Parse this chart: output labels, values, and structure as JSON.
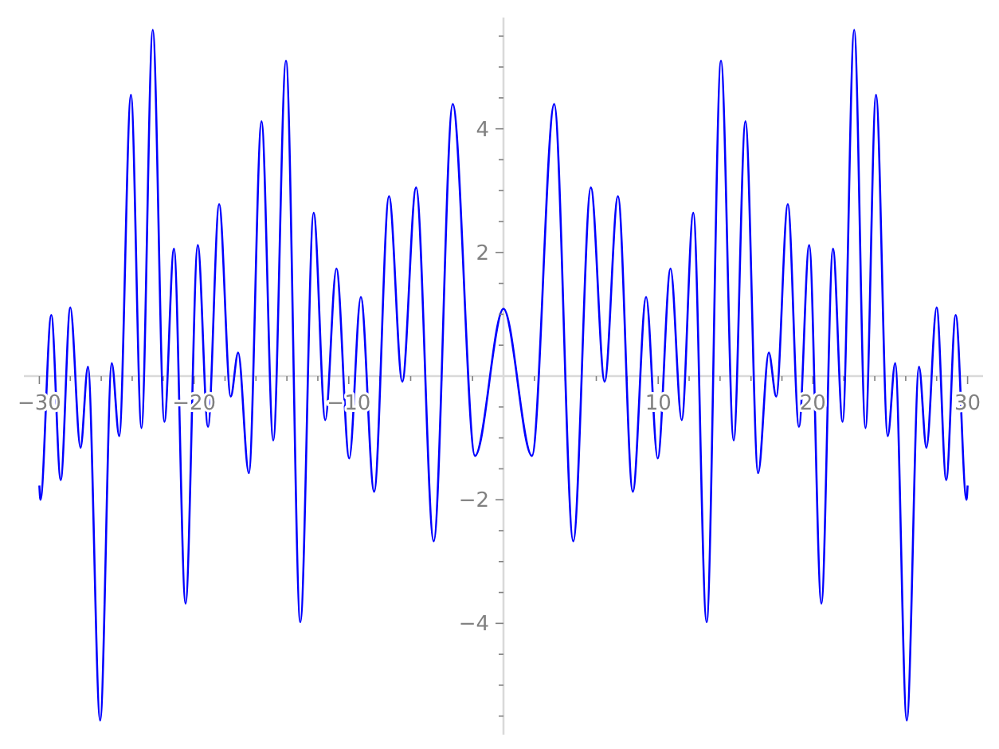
{
  "chart_data": {
    "type": "line",
    "x": [
      -30,
      -29.93,
      -29.23,
      -28.62,
      -28.0,
      -27.34,
      -26.86,
      -26.07,
      -25.32,
      -24.84,
      -24.08,
      -23.4,
      -22.67,
      -21.92,
      -21.3,
      -20.55,
      -19.76,
      -19.1,
      -18.38,
      -17.63,
      -17.15,
      -16.46,
      -15.64,
      -14.88,
      -14.06,
      -13.13,
      -12.27,
      -11.52,
      -10.8,
      -9.97,
      -9.22,
      -8.36,
      -7.4,
      -6.54,
      -5.65,
      -4.51,
      -3.28,
      -1.84,
      0,
      1.84,
      3.28,
      4.51,
      5.65,
      6.54,
      7.4,
      8.36,
      9.22,
      9.97,
      10.8,
      11.52,
      12.27,
      13.13,
      14.06,
      14.88,
      15.64,
      16.46,
      17.15,
      17.63,
      18.38,
      19.1,
      19.76,
      20.55,
      21.3,
      21.92,
      22.67,
      23.4,
      24.08,
      24.84,
      25.32,
      26.07,
      26.86,
      27.34,
      28.0,
      28.62,
      29.23,
      29.93,
      30
    ],
    "series": [
      {
        "color": "#0000ff",
        "values": [
          -1.77,
          -2.0,
          0.99,
          -1.68,
          1.11,
          -1.16,
          0.15,
          -5.57,
          0.21,
          -0.97,
          4.55,
          -0.84,
          5.6,
          -0.74,
          2.06,
          -3.68,
          2.12,
          -0.82,
          2.78,
          -0.33,
          0.38,
          -1.57,
          4.12,
          -1.04,
          5.1,
          -3.98,
          2.64,
          -0.71,
          1.74,
          -1.33,
          1.28,
          -1.87,
          2.91,
          -0.09,
          3.05,
          -2.67,
          4.4,
          -1.29,
          1.09,
          -1.29,
          4.4,
          -2.67,
          3.05,
          -0.09,
          2.91,
          -1.87,
          1.28,
          -1.33,
          1.74,
          -0.71,
          2.64,
          -3.98,
          5.1,
          -1.04,
          4.12,
          -1.57,
          0.38,
          -0.33,
          2.78,
          -0.82,
          2.12,
          -3.68,
          2.06,
          -0.74,
          5.6,
          -0.84,
          4.55,
          -0.97,
          0.21,
          -5.57,
          0.15,
          -1.16,
          1.11,
          -1.68,
          0.99,
          -2.0,
          -1.77
        ]
      }
    ],
    "xlim": [
      -31,
      31
    ],
    "ylim": [
      -5.8,
      5.8
    ],
    "xticks": [
      {
        "value": -30,
        "label": "−30"
      },
      {
        "value": -28,
        "label": null
      },
      {
        "value": -26,
        "label": null
      },
      {
        "value": -24,
        "label": null
      },
      {
        "value": -22,
        "label": null
      },
      {
        "value": -20,
        "label": "−20"
      },
      {
        "value": -18,
        "label": null
      },
      {
        "value": -16,
        "label": null
      },
      {
        "value": -14,
        "label": null
      },
      {
        "value": -12,
        "label": null
      },
      {
        "value": -10,
        "label": "−10"
      },
      {
        "value": -8,
        "label": null
      },
      {
        "value": -6,
        "label": null
      },
      {
        "value": -4,
        "label": null
      },
      {
        "value": -2,
        "label": null
      },
      {
        "value": 2,
        "label": null
      },
      {
        "value": 4,
        "label": null
      },
      {
        "value": 6,
        "label": null
      },
      {
        "value": 8,
        "label": null
      },
      {
        "value": 10,
        "label": "10"
      },
      {
        "value": 12,
        "label": null
      },
      {
        "value": 14,
        "label": null
      },
      {
        "value": 16,
        "label": null
      },
      {
        "value": 18,
        "label": null
      },
      {
        "value": 20,
        "label": "20"
      },
      {
        "value": 22,
        "label": null
      },
      {
        "value": 24,
        "label": null
      },
      {
        "value": 26,
        "label": null
      },
      {
        "value": 28,
        "label": null
      },
      {
        "value": 30,
        "label": "30"
      }
    ],
    "yticks": [
      {
        "value": -5.5,
        "label": null
      },
      {
        "value": -5,
        "label": null
      },
      {
        "value": -4.5,
        "label": null
      },
      {
        "value": -4,
        "label": "−4"
      },
      {
        "value": -3.5,
        "label": null
      },
      {
        "value": -3,
        "label": null
      },
      {
        "value": -2.5,
        "label": null
      },
      {
        "value": -2,
        "label": "−2"
      },
      {
        "value": -1.5,
        "label": null
      },
      {
        "value": -1,
        "label": null
      },
      {
        "value": -0.5,
        "label": null
      },
      {
        "value": 0.5,
        "label": null
      },
      {
        "value": 1,
        "label": null
      },
      {
        "value": 1.5,
        "label": null
      },
      {
        "value": 2,
        "label": "2"
      },
      {
        "value": 2.5,
        "label": null
      },
      {
        "value": 3,
        "label": null
      },
      {
        "value": 3.5,
        "label": null
      },
      {
        "value": 4,
        "label": "4"
      },
      {
        "value": 4.5,
        "label": null
      },
      {
        "value": 5,
        "label": null
      },
      {
        "value": 5.5,
        "label": null
      }
    ],
    "grid": false
  }
}
